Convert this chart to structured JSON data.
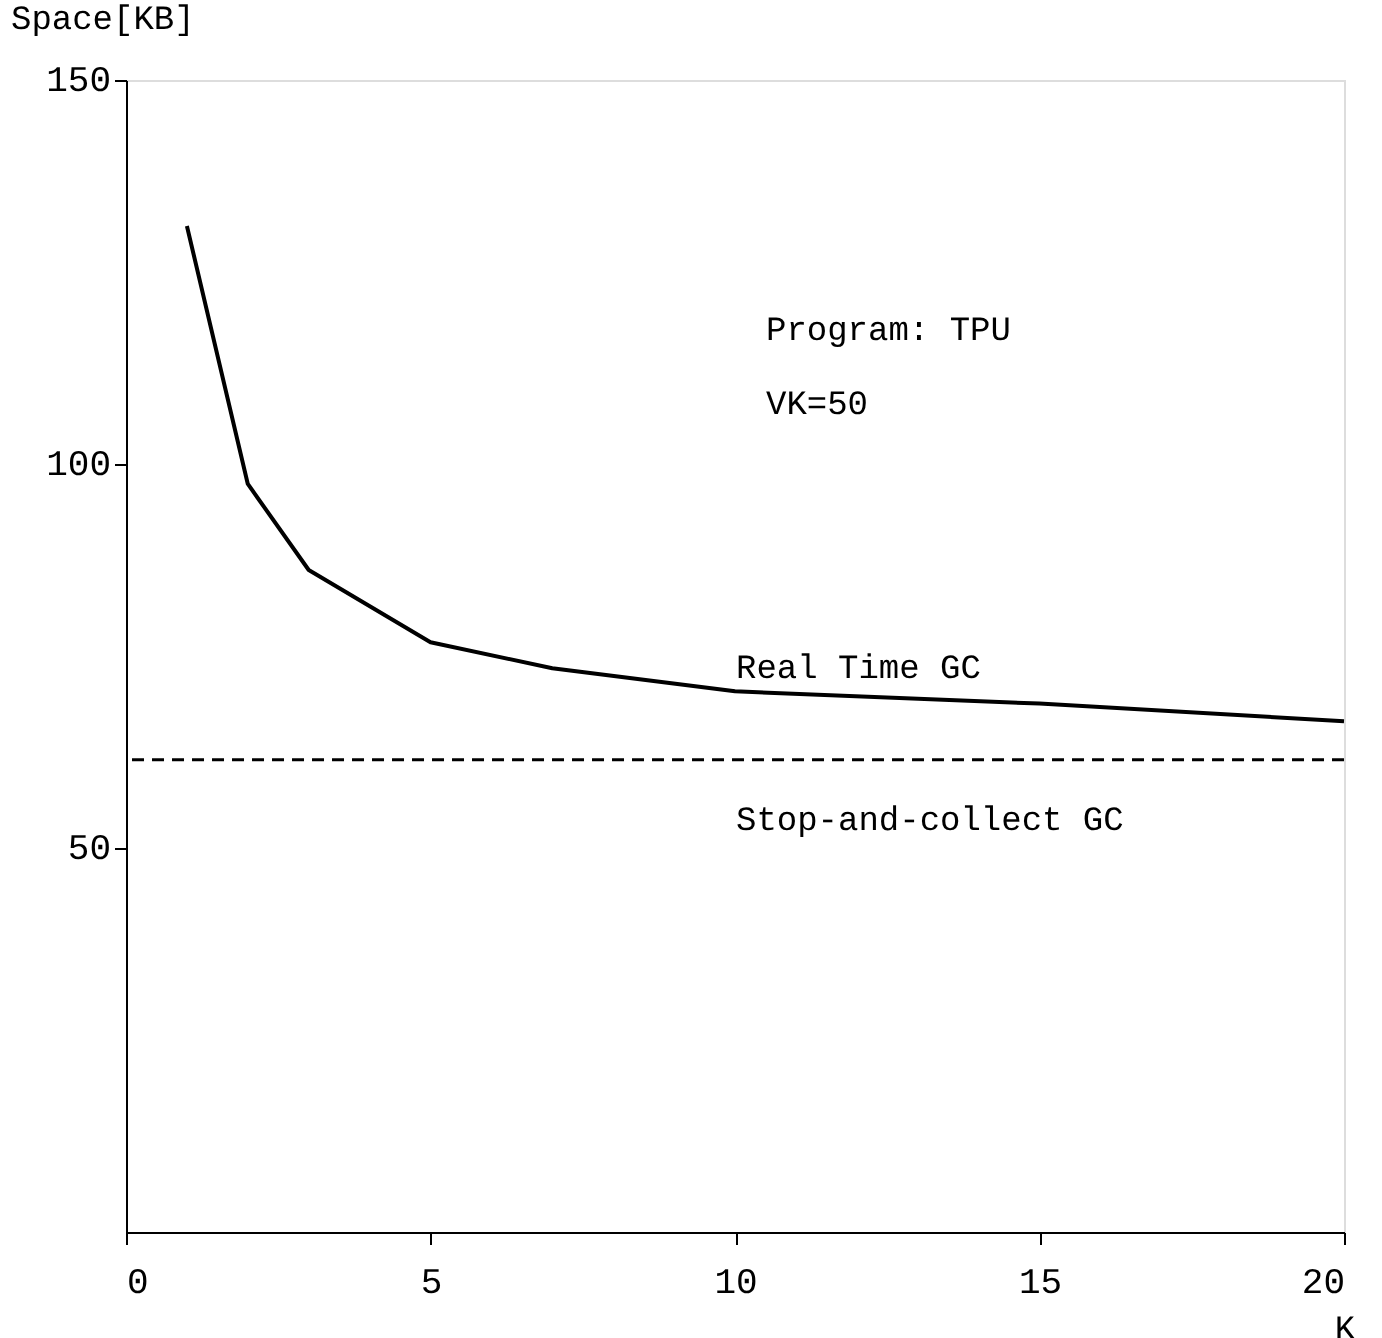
{
  "chart_data": {
    "type": "line",
    "xlabel": "K",
    "ylabel": "Space[KB]",
    "xlim": [
      0,
      20
    ],
    "xticks": [
      0,
      5,
      10,
      15,
      20
    ],
    "ylim": [
      0,
      150
    ],
    "yticks": [
      50,
      100,
      150
    ],
    "grid": false,
    "marker": "none",
    "line_style": "solid",
    "series": [
      {
        "name": "Real Time GC",
        "color": "#000000",
        "x": [
          1,
          2,
          3,
          5,
          7,
          10,
          15,
          20
        ],
        "values": [
          131,
          97.4,
          86.2,
          76.8,
          73.4,
          70.4,
          68.8,
          66.5
        ]
      }
    ],
    "ref_lines": [
      {
        "axis": "y",
        "value": 61.5,
        "label": "Stop-and-collect GC",
        "color": "#000000",
        "line_style": "dashed"
      }
    ],
    "annotations": [
      "Program: TPU",
      "VK=50"
    ]
  }
}
